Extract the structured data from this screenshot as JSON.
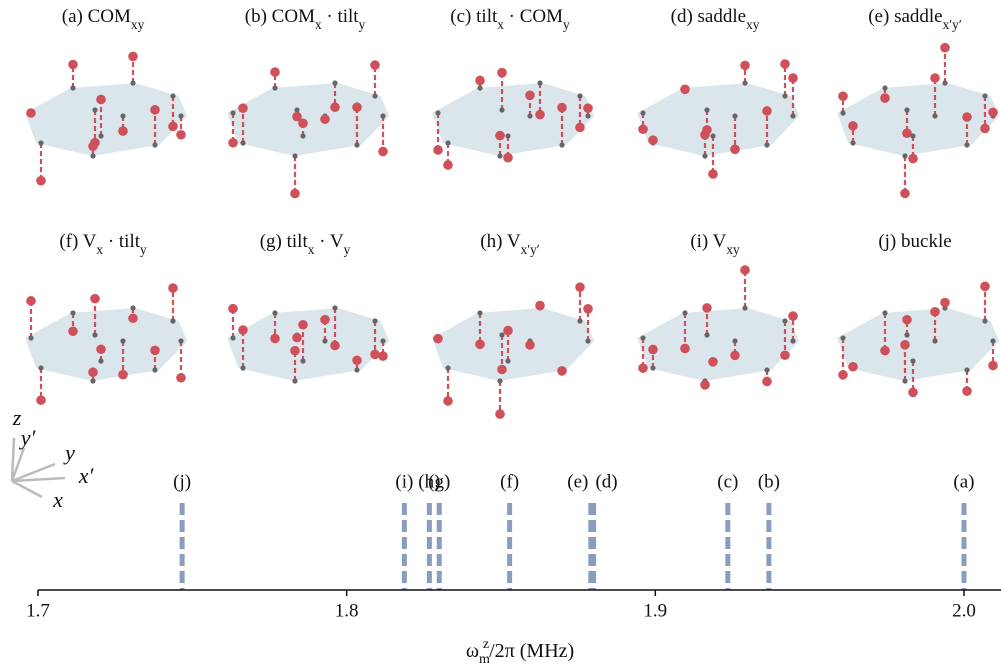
{
  "panels": [
    {
      "label": [
        {
          "t": "(a) COM"
        },
        {
          "t": "xy",
          "sub": true
        }
      ]
    },
    {
      "label": [
        {
          "t": "(b) COM"
        },
        {
          "t": "x",
          "sub": true
        },
        {
          "t": " · tilt"
        },
        {
          "t": "y",
          "sub": true
        }
      ]
    },
    {
      "label": [
        {
          "t": "(c) tilt"
        },
        {
          "t": "x",
          "sub": true
        },
        {
          "t": " · COM"
        },
        {
          "t": "y",
          "sub": true
        }
      ]
    },
    {
      "label": [
        {
          "t": "(d) saddle"
        },
        {
          "t": "xy",
          "sub": true
        }
      ]
    },
    {
      "label": [
        {
          "t": "(e) saddle"
        },
        {
          "t": "x′y′",
          "sub": true
        }
      ]
    },
    {
      "label": [
        {
          "t": "(f) V"
        },
        {
          "t": "x",
          "sub": true
        },
        {
          "t": " · tilt"
        },
        {
          "t": "y",
          "sub": true
        }
      ]
    },
    {
      "label": [
        {
          "t": "(g) tilt"
        },
        {
          "t": "x",
          "sub": true
        },
        {
          "t": " · V"
        },
        {
          "t": "y",
          "sub": true
        }
      ]
    },
    {
      "label": [
        {
          "t": "(h) V"
        },
        {
          "t": "x′y′",
          "sub": true
        }
      ]
    },
    {
      "label": [
        {
          "t": "(i) V"
        },
        {
          "t": "xy",
          "sub": true
        }
      ]
    },
    {
      "label": [
        {
          "t": "(j) buckle"
        }
      ]
    }
  ],
  "axes_labels": [
    "z",
    "y′",
    "y",
    "x′",
    "x"
  ],
  "chart_data": {
    "type": "vlines",
    "categories": [
      "(a)",
      "(b)",
      "(c)",
      "(d)",
      "(e)",
      "(f)",
      "(g)",
      "(h)",
      "(i)",
      "(j)"
    ],
    "x": [
      2.0,
      1.9368,
      1.9235,
      1.88,
      1.8791,
      1.8528,
      1.83,
      1.8268,
      1.8187,
      1.7467
    ],
    "color": "#8a9cc0",
    "xlim": [
      1.7,
      2.012
    ],
    "xticks": [
      1.7,
      1.8,
      1.9,
      {
        "value": 2.0,
        "label": "2.0"
      }
    ],
    "xlabel": [
      {
        "t": "ω"
      },
      {
        "t": "m",
        "sub": true
      },
      {
        "t": "z",
        "sup": true
      },
      {
        "t": "/2π (MHz)"
      }
    ]
  }
}
